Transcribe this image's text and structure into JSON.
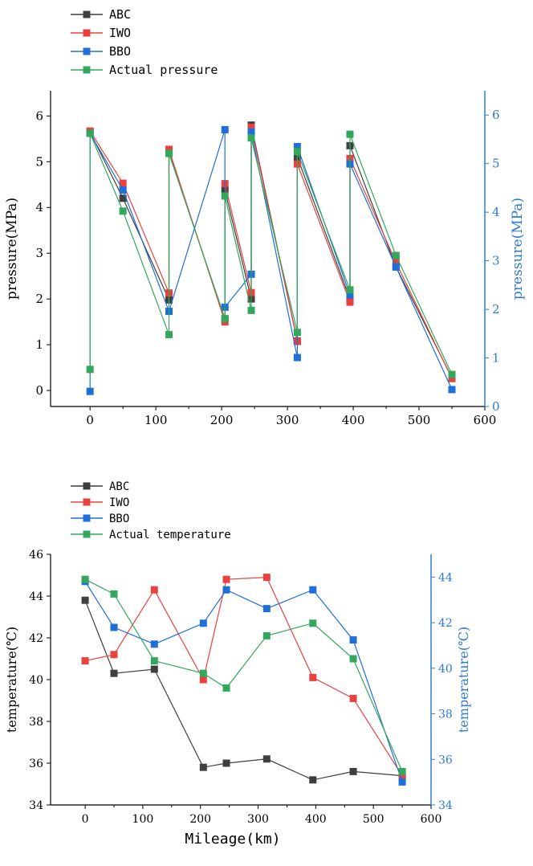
{
  "colors": {
    "abc": "#3f3f3f",
    "iwo": "#e8413e",
    "bbo": "#1f6fd8",
    "actual": "#33a85c",
    "right_axis": "#2d7ad6",
    "axis": "#000000"
  },
  "chart_data": [
    {
      "type": "line",
      "xlabel": "Mileage(km)",
      "ylabel": "pressure(MPa)",
      "ylabel_right": "pressure(MPa)",
      "xlim": [
        -60,
        600
      ],
      "ylim": [
        -0.35,
        6.55
      ],
      "ylim_right": [
        0,
        6.5
      ],
      "xticks": [
        "0",
        "100",
        "200",
        "300",
        "400",
        "500",
        "600"
      ],
      "yticks": [
        "0",
        "1",
        "2",
        "3",
        "4",
        "5",
        "6"
      ],
      "yticks_right": [
        "0",
        "1",
        "2",
        "3",
        "4",
        "5",
        "6"
      ],
      "legend": "top-left",
      "series": [
        {
          "name": "ABC",
          "x": [
            0,
            50,
            120,
            120,
            205,
            205,
            245,
            245,
            315,
            315,
            395,
            395,
            465,
            550
          ],
          "y": [
            5.65,
            4.2,
            1.98,
            5.2,
            1.56,
            4.38,
            2.0,
            5.8,
            1.08,
            5.1,
            2.0,
            5.35,
            2.7,
            0.28
          ]
        },
        {
          "name": "IWO",
          "x": [
            0,
            50,
            120,
            120,
            205,
            205,
            245,
            245,
            315,
            315,
            395,
            395,
            465,
            550
          ],
          "y": [
            5.67,
            4.53,
            2.13,
            5.27,
            1.5,
            4.52,
            2.14,
            5.75,
            1.07,
            4.95,
            1.93,
            5.07,
            2.8,
            0.26
          ]
        },
        {
          "name": "BBO",
          "x": [
            0,
            0,
            50,
            120,
            205,
            205,
            245,
            245,
            315,
            315,
            395,
            395,
            465,
            550
          ],
          "y": [
            -0.02,
            5.62,
            4.38,
            1.73,
            5.7,
            1.82,
            2.54,
            5.65,
            0.72,
            5.33,
            2.09,
            4.95,
            2.7,
            0.02
          ]
        },
        {
          "name": "Actual pressure",
          "x": [
            0,
            0,
            50,
            120,
            120,
            205,
            205,
            245,
            245,
            315,
            315,
            395,
            395,
            465,
            550
          ],
          "y": [
            0.46,
            5.62,
            3.92,
            1.22,
            5.18,
            1.57,
            4.25,
            1.75,
            5.52,
            1.27,
            5.22,
            2.2,
            5.6,
            2.95,
            0.35
          ]
        }
      ]
    },
    {
      "type": "line",
      "xlabel": "Mileage(km)",
      "ylabel": "temperature(℃)",
      "ylabel_right": "temperature(℃)",
      "xlim": [
        -60,
        600
      ],
      "ylim": [
        34,
        46
      ],
      "ylim_right": [
        34,
        45
      ],
      "xticks": [
        "0",
        "100",
        "200",
        "300",
        "400",
        "500",
        "600"
      ],
      "yticks": [
        "34",
        "36",
        "38",
        "40",
        "42",
        "44",
        "46"
      ],
      "yticks_right": [
        "34",
        "36",
        "38",
        "40",
        "42",
        "44"
      ],
      "legend": "top-left",
      "series": [
        {
          "name": "ABC",
          "x": [
            0,
            50,
            120,
            205,
            245,
            315,
            395,
            465,
            550
          ],
          "y": [
            43.8,
            40.3,
            40.5,
            35.8,
            36.0,
            36.2,
            35.2,
            35.6,
            35.4
          ],
          "x_peaks": [
            0,
            50,
            120,
            205,
            245,
            315,
            395,
            465,
            550
          ]
        },
        {
          "name": "IWO",
          "x": [
            0,
            50,
            120,
            205,
            245,
            315,
            395,
            465,
            550
          ],
          "y": [
            40.9,
            41.2,
            44.3,
            40.0,
            44.8,
            44.9,
            40.1,
            39.1,
            35.4
          ]
        },
        {
          "name": "BBO",
          "x": [
            0,
            50,
            120,
            205,
            245,
            315,
            395,
            465,
            550
          ],
          "y": [
            44.7,
            42.5,
            41.7,
            42.7,
            44.3,
            43.4,
            44.3,
            41.9,
            35.1
          ]
        },
        {
          "name": "Actual temperature",
          "x": [
            0,
            50,
            120,
            205,
            245,
            315,
            395,
            465,
            550
          ],
          "y": [
            44.8,
            44.1,
            40.9,
            40.3,
            39.6,
            42.1,
            42.7,
            41.0,
            35.6
          ]
        }
      ]
    }
  ]
}
